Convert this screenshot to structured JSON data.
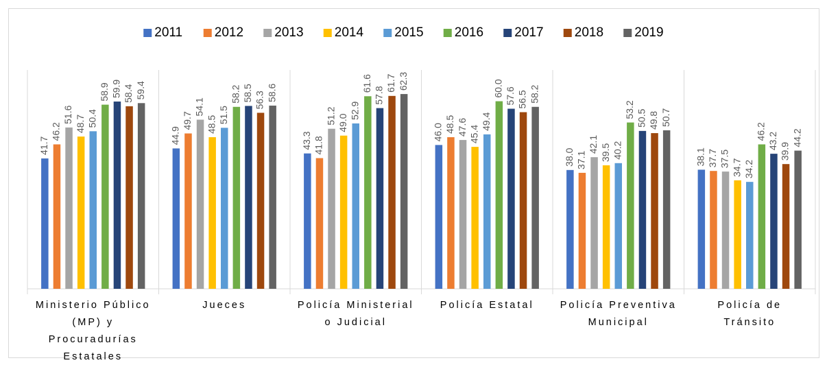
{
  "chart_data": {
    "type": "bar",
    "categories": [
      "Ministerio Público (MP) y Procuradurías Estatales",
      "Jueces",
      "Policía Ministerial o Judicial",
      "Policía Estatal",
      "Policía Preventiva Municipal",
      "Policía de Tránsito"
    ],
    "series": [
      {
        "name": "2011",
        "color": "#4472c4",
        "values": [
          41.7,
          44.9,
          43.3,
          46.0,
          38.0,
          38.1
        ],
        "value_labels": [
          "41.7",
          "44.9",
          "43.3",
          "46.0",
          "38.0",
          "38.1"
        ]
      },
      {
        "name": "2012",
        "color": "#ed7d31",
        "values": [
          46.2,
          49.7,
          41.8,
          48.5,
          37.1,
          37.7
        ],
        "value_labels": [
          "46.2",
          "49.7",
          "41.8",
          "48.5",
          "37.1",
          "37.7"
        ]
      },
      {
        "name": "2013",
        "color": "#a5a5a5",
        "values": [
          51.6,
          54.1,
          51.2,
          47.6,
          42.1,
          37.5
        ],
        "value_labels": [
          "51.6",
          "54.1",
          "51.2",
          "47.6",
          "42.1",
          "37.5"
        ]
      },
      {
        "name": "2014",
        "color": "#ffc000",
        "values": [
          48.7,
          48.5,
          49.0,
          45.4,
          39.5,
          34.7
        ],
        "value_labels": [
          "48.7",
          "48.5",
          "49.0",
          "45.4",
          "39.5",
          "34.7"
        ]
      },
      {
        "name": "2015",
        "color": "#5b9bd5",
        "values": [
          50.4,
          51.5,
          52.9,
          49.4,
          40.2,
          34.2
        ],
        "value_labels": [
          "50.4",
          "51.5",
          "52.9",
          "49.4",
          "40.2",
          "34.2"
        ]
      },
      {
        "name": "2016",
        "color": "#70ad47",
        "values": [
          58.9,
          58.2,
          61.6,
          60.0,
          53.2,
          46.2
        ],
        "value_labels": [
          "58.9",
          "58.2",
          "61.6",
          "60.0",
          "53.2",
          "46.2"
        ]
      },
      {
        "name": "2017",
        "color": "#264478",
        "values": [
          59.9,
          58.5,
          57.8,
          57.6,
          50.5,
          43.2
        ],
        "value_labels": [
          "59.9",
          "58.5",
          "57.8",
          "57.6",
          "50.5",
          "43.2"
        ]
      },
      {
        "name": "2018",
        "color": "#9e480e",
        "values": [
          58.4,
          56.3,
          61.7,
          56.5,
          49.8,
          39.9
        ],
        "value_labels": [
          "58.4",
          "56.3",
          "61.7",
          "56.5",
          "49.8",
          "39.9"
        ]
      },
      {
        "name": "2019",
        "color": "#636363",
        "values": [
          59.4,
          58.6,
          62.3,
          58.2,
          50.7,
          44.2
        ],
        "value_labels": [
          "59.4",
          "58.6",
          "62.3",
          "58.2",
          "50.7",
          "44.2"
        ]
      }
    ],
    "ylim": [
      0,
      70
    ],
    "legend": "top"
  }
}
